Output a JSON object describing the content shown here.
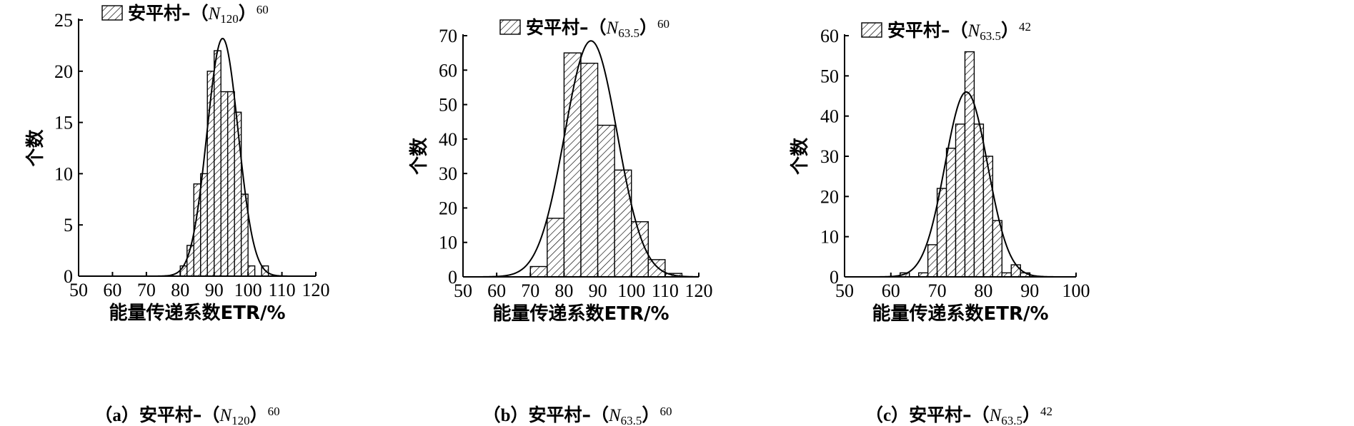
{
  "chart_data": [
    {
      "type": "bar",
      "subtype": "histogram-with-normal-fit",
      "legend": {
        "prefix": "安平村–（",
        "italic": "N",
        "subscript": "120",
        "close": "）",
        "superscript": "60"
      },
      "caption": {
        "tag": "（a）",
        "prefix": "安平村–（",
        "italic": "N",
        "subscript": "120",
        "close": "）",
        "superscript": "60"
      },
      "xlabel": "能量传递系数ETR/%",
      "ylabel": "个数",
      "xlim": [
        50,
        120
      ],
      "ylim": [
        0,
        25
      ],
      "xticks": [
        50,
        60,
        70,
        80,
        90,
        100,
        110,
        120
      ],
      "yticks": [
        0,
        5,
        10,
        15,
        20,
        25
      ],
      "bin_width": 2,
      "bins": [
        {
          "x": 80,
          "count": 1
        },
        {
          "x": 82,
          "count": 3
        },
        {
          "x": 84,
          "count": 9
        },
        {
          "x": 86,
          "count": 10
        },
        {
          "x": 88,
          "count": 20
        },
        {
          "x": 90,
          "count": 22
        },
        {
          "x": 92,
          "count": 18
        },
        {
          "x": 94,
          "count": 18
        },
        {
          "x": 96,
          "count": 16
        },
        {
          "x": 98,
          "count": 8
        },
        {
          "x": 100,
          "count": 1
        },
        {
          "x": 102,
          "count": 0
        },
        {
          "x": 104,
          "count": 1
        }
      ],
      "fit": {
        "mean": 92.5,
        "sd": 4.6,
        "peak": 23.2
      },
      "legend_position": "top-left"
    },
    {
      "type": "bar",
      "subtype": "histogram-with-normal-fit",
      "legend": {
        "prefix": "安平村–（",
        "italic": "N",
        "subscript": "63.5",
        "close": "）",
        "superscript": "60"
      },
      "caption": {
        "tag": "（b）",
        "prefix": "安平村–（",
        "italic": "N",
        "subscript": "63.5",
        "close": "）",
        "superscript": "60"
      },
      "xlabel": "能量传递系数ETR/%",
      "ylabel": "个数",
      "xlim": [
        50,
        120
      ],
      "ylim": [
        0,
        70
      ],
      "xticks": [
        50,
        60,
        70,
        80,
        90,
        100,
        110,
        120
      ],
      "yticks": [
        0,
        10,
        20,
        30,
        40,
        50,
        60,
        70
      ],
      "bin_width": 5,
      "bins": [
        {
          "x": 70,
          "count": 3
        },
        {
          "x": 75,
          "count": 17
        },
        {
          "x": 80,
          "count": 65
        },
        {
          "x": 85,
          "count": 62
        },
        {
          "x": 90,
          "count": 44
        },
        {
          "x": 95,
          "count": 31
        },
        {
          "x": 100,
          "count": 16
        },
        {
          "x": 105,
          "count": 5
        },
        {
          "x": 110,
          "count": 1
        }
      ],
      "fit": {
        "mean": 88,
        "sd": 7.8,
        "peak": 68.5
      },
      "legend_position": "top-center"
    },
    {
      "type": "bar",
      "subtype": "histogram-with-normal-fit",
      "legend": {
        "prefix": "安平村–（",
        "italic": "N",
        "subscript": "63.5",
        "close": "）",
        "superscript": "42"
      },
      "caption": {
        "tag": "（c）",
        "prefix": "安平村–（",
        "italic": "N",
        "subscript": "63.5",
        "close": "）",
        "superscript": "42"
      },
      "xlabel": "能量传递系数ETR/%",
      "ylabel": "个数",
      "xlim": [
        50,
        100
      ],
      "ylim": [
        0,
        60
      ],
      "xticks": [
        50,
        60,
        70,
        80,
        90,
        100
      ],
      "yticks": [
        0,
        10,
        20,
        30,
        40,
        50,
        60
      ],
      "bin_width": 2,
      "bins": [
        {
          "x": 62,
          "count": 1
        },
        {
          "x": 64,
          "count": 0
        },
        {
          "x": 66,
          "count": 1
        },
        {
          "x": 68,
          "count": 8
        },
        {
          "x": 70,
          "count": 22
        },
        {
          "x": 72,
          "count": 32
        },
        {
          "x": 74,
          "count": 38
        },
        {
          "x": 76,
          "count": 56
        },
        {
          "x": 78,
          "count": 38
        },
        {
          "x": 80,
          "count": 30
        },
        {
          "x": 82,
          "count": 14
        },
        {
          "x": 84,
          "count": 1
        },
        {
          "x": 86,
          "count": 3
        },
        {
          "x": 88,
          "count": 1
        }
      ],
      "fit": {
        "mean": 76.3,
        "sd": 4.6,
        "peak": 46
      },
      "legend_position": "top-left"
    }
  ]
}
